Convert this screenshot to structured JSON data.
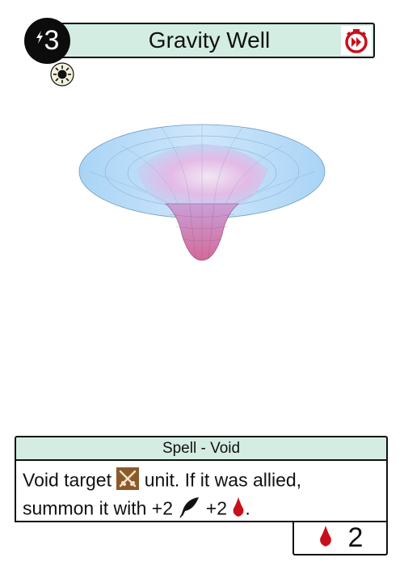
{
  "card": {
    "name": "Gravity Well",
    "cost": "3",
    "type_line": "Spell - Void",
    "text": {
      "part1": "Void target",
      "part2": "unit. If it was allied,",
      "part3": "summon it with +2",
      "part4": "+2",
      "part5": "."
    },
    "stat_value": "2"
  },
  "icons": {
    "cost": "lightning-bolt-icon",
    "speed": "fast-clock-icon",
    "element": "sun-icon",
    "target": "crossed-swords-icon",
    "feather": "feather-icon",
    "blood": "blood-drop-icon"
  },
  "colors": {
    "header_bg": "#d4ede3",
    "blood_red": "#c8101c",
    "cost_circle": "#0c0c0c",
    "target_icon_bg": "#8b5a2b"
  }
}
